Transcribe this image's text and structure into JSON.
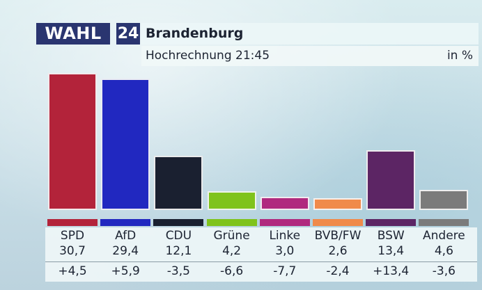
{
  "header": {
    "brand": "WAHL",
    "brand_number": "24",
    "title": "Brandenburg",
    "subtitle": "Hochrechnung 21:45",
    "unit": "in %"
  },
  "colors": {
    "brand_bg": "#2a3570"
  },
  "chart_data": {
    "type": "bar",
    "title": "Brandenburg",
    "subtitle": "Hochrechnung 21:45",
    "ylabel": "in %",
    "ylim": [
      0,
      31.5
    ],
    "categories": [
      "SPD",
      "AfD",
      "CDU",
      "Grüne",
      "Linke",
      "BVB/FW",
      "BSW",
      "Andere"
    ],
    "values": [
      30.7,
      29.4,
      12.1,
      4.2,
      3.0,
      2.6,
      13.4,
      4.6
    ],
    "value_labels": [
      "30,7",
      "29,4",
      "12,1",
      "4,2",
      "3,0",
      "2,6",
      "13,4",
      "4,6"
    ],
    "changes": [
      "+4,5",
      "+5,9",
      "-3,5",
      "-6,6",
      "-7,7",
      "-2,4",
      "+13,4",
      "-3,6"
    ],
    "colors": [
      "#b3233a",
      "#2128c0",
      "#1a2030",
      "#7fc31c",
      "#b0297e",
      "#f08a4a",
      "#5c2564",
      "#7b7b7b"
    ]
  }
}
